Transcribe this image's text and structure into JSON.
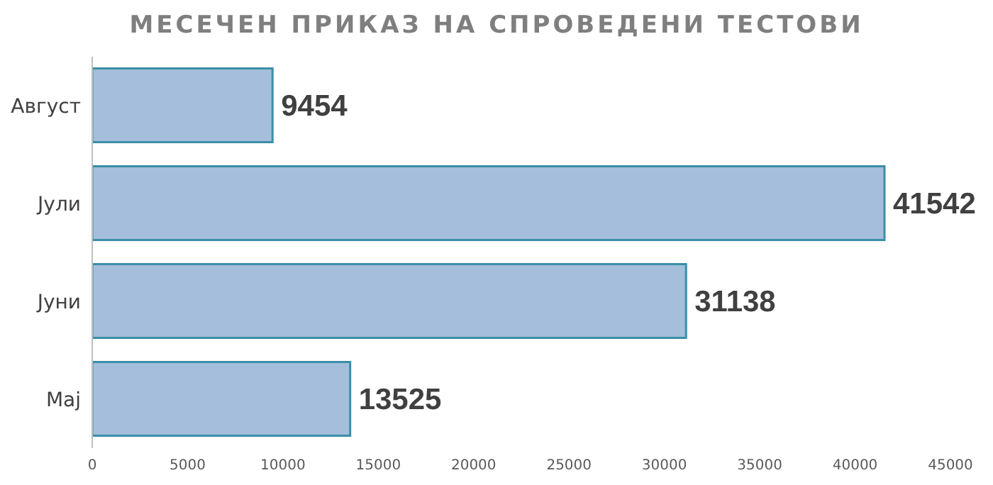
{
  "chart_data": {
    "type": "bar",
    "orientation": "horizontal",
    "title": "МЕСЕЧЕН ПРИКАЗ НА СПРОВЕДЕНИ ТЕСТОВИ",
    "categories": [
      "Август",
      "Јули",
      "Јуни",
      "Мај"
    ],
    "values": [
      9454,
      41542,
      31138,
      13525
    ],
    "color": "#a4bedb",
    "xlim": [
      0,
      45000
    ],
    "xticks": [
      0,
      5000,
      10000,
      15000,
      20000,
      25000,
      30000,
      35000,
      40000,
      45000
    ],
    "data_labels": true,
    "grid": false,
    "legend": false
  }
}
